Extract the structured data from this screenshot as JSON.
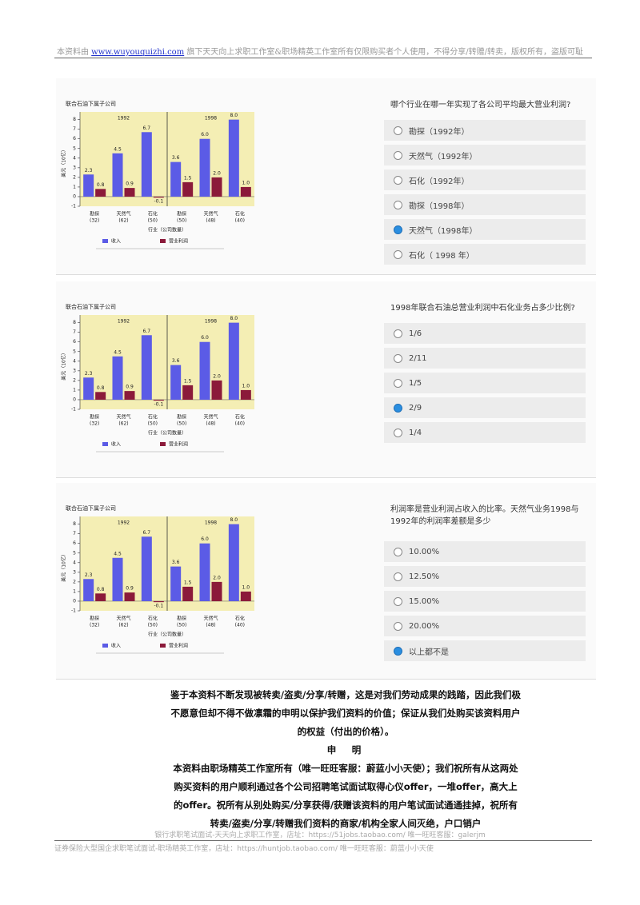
{
  "header": {
    "prefix": "本资料由",
    "link": "www.wuyouquizhi.com",
    "suffix": "旗下天天向上求职工作室&职场精英工作室所有仅限购买者个人使用，不得分享/转赠/转卖，版权所有，盗版可耻"
  },
  "panels": [
    {
      "chart": {
        "title": "联合石油下属子公司",
        "ylabel": "美元（10亿）",
        "xlabel": "行业（公司数量）",
        "ylim": [
          -1,
          8.8
        ],
        "yticks": [
          -1,
          0,
          1,
          2,
          3,
          4,
          5,
          6,
          7,
          8
        ],
        "series": [
          {
            "name": "收入",
            "color": "#5b5be6"
          },
          {
            "name": "营业利润",
            "color": "#8b1a3a"
          }
        ],
        "groups": [
          {
            "year": "1992",
            "categories": [
              "勘探",
              "天然气",
              "石化"
            ],
            "counts": [
              "(32)",
              "(62)",
              "(50)"
            ],
            "values": [
              [
                2.3,
                4.5,
                6.7
              ],
              [
                0.8,
                0.9,
                -0.1
              ]
            ],
            "value_labels": [
              [
                "2.3",
                "4.5",
                "6.7"
              ],
              [
                "0.8",
                "0.9",
                "-0.1"
              ]
            ]
          },
          {
            "year": "1998",
            "categories": [
              "勘探",
              "天然气",
              "石化"
            ],
            "counts": [
              "(50)",
              "(48)",
              "(40)"
            ],
            "values": [
              [
                3.6,
                6.0,
                8.0
              ],
              [
                1.5,
                2.0,
                1.0
              ]
            ],
            "value_labels": [
              [
                "3.6",
                "6.0",
                "8.0"
              ],
              [
                "1.5",
                "2.0",
                "1.0"
              ]
            ]
          }
        ]
      },
      "question": "哪个行业在哪一年实现了各公司平均最大营业利润?",
      "options": [
        "勘探（1992年）",
        "天然气（1992年）",
        "石化（1992年）",
        "勘探（1998年）",
        "天然气（1998年）",
        "石化（ 1998 年）"
      ],
      "selected": 4
    },
    {
      "chart": {
        "title": "联合石油下属子公司",
        "ylabel": "美元（10亿）",
        "xlabel": "行业（公司数量）",
        "ylim": [
          -1,
          8.8
        ],
        "yticks": [
          -1,
          0,
          1,
          2,
          3,
          4,
          5,
          6,
          7,
          8
        ],
        "series": [
          {
            "name": "收入",
            "color": "#5b5be6"
          },
          {
            "name": "营业利润",
            "color": "#8b1a3a"
          }
        ],
        "groups": [
          {
            "year": "1992",
            "categories": [
              "勘探",
              "天然气",
              "石化"
            ],
            "counts": [
              "(32)",
              "(62)",
              "(50)"
            ],
            "values": [
              [
                2.3,
                4.5,
                6.7
              ],
              [
                0.8,
                0.9,
                -0.1
              ]
            ],
            "value_labels": [
              [
                "2.3",
                "4.5",
                "6.7"
              ],
              [
                "0.8",
                "0.9",
                "-0.1"
              ]
            ]
          },
          {
            "year": "1998",
            "categories": [
              "勘探",
              "天然气",
              "石化"
            ],
            "counts": [
              "(50)",
              "(48)",
              "(40)"
            ],
            "values": [
              [
                3.6,
                6.0,
                8.0
              ],
              [
                1.5,
                2.0,
                1.0
              ]
            ],
            "value_labels": [
              [
                "3.6",
                "6.0",
                "8.0"
              ],
              [
                "1.5",
                "2.0",
                "1.0"
              ]
            ]
          }
        ]
      },
      "question": "1998年联合石油总营业利润中石化业务占多少比例?",
      "options": [
        "1/6",
        "2/11",
        "1/5",
        "2/9",
        "1/4"
      ],
      "selected": 3
    },
    {
      "chart": {
        "title": "联合石油下属子公司",
        "ylabel": "美元（10亿）",
        "xlabel": "行业（公司数量）",
        "ylim": [
          -1,
          8.8
        ],
        "yticks": [
          -1,
          0,
          1,
          2,
          3,
          4,
          5,
          6,
          7,
          8
        ],
        "series": [
          {
            "name": "收入",
            "color": "#5b5be6"
          },
          {
            "name": "营业利润",
            "color": "#8b1a3a"
          }
        ],
        "groups": [
          {
            "year": "1992",
            "categories": [
              "勘探",
              "天然气",
              "石化"
            ],
            "counts": [
              "(32)",
              "(62)",
              "(50)"
            ],
            "values": [
              [
                2.3,
                4.5,
                6.7
              ],
              [
                0.8,
                0.9,
                -0.1
              ]
            ],
            "value_labels": [
              [
                "2.3",
                "4.5",
                "6.7"
              ],
              [
                "0.8",
                "0.9",
                "-0.1"
              ]
            ]
          },
          {
            "year": "1998",
            "categories": [
              "勘探",
              "天然气",
              "石化"
            ],
            "counts": [
              "(50)",
              "(48)",
              "(40)"
            ],
            "values": [
              [
                3.6,
                6.0,
                8.0
              ],
              [
                1.5,
                2.0,
                1.0
              ]
            ],
            "value_labels": [
              [
                "3.6",
                "6.0",
                "8.0"
              ],
              [
                "1.5",
                "2.0",
                "1.0"
              ]
            ]
          }
        ]
      },
      "question": "利润率是营业利润占收入的比率。天然气业务1998与1992年的利润率差额是多少",
      "options": [
        "10.00%",
        "12.50%",
        "15.00%",
        "20.00%",
        "以上都不是"
      ],
      "selected": 4
    }
  ],
  "statement": {
    "p1": "鉴于本资料不断发现被转卖/盗卖/分享/转赠，这是对我们劳动成果的践踏，因此我们极不愿意但却不得不做凛霜的申明以保护我们资料的价值；保证从我们处购买该资料用户的权益（付出的价格）。",
    "heading": "申　明",
    "p2": "本资料由职场精英工作室所有（唯一旺旺客服：蔚蓝小小天使）；我们祝所有从这两处购买资料的用户顺利通过各个公司招聘笔试面试取得心仪offer，一堆offer，高大上的offer。祝所有从别处购买/分享获得/获赠该资料的用户笔试面试通通挂掉，祝所有转卖/盗卖/分享/转赠我们资料的商家/机构全家人间灭绝，户口销户"
  },
  "footer": {
    "line1": "银行求职笔试面试-天天向上求职工作室，店址：https://51jobs.taobao.com/  唯一旺旺客服：galerjm",
    "line2": "证券保险大型国企求职笔试面试-职场精英工作室，店址：https://huntjob.taobao.com/  唯一旺旺客服：蔚蓝小小天使"
  }
}
